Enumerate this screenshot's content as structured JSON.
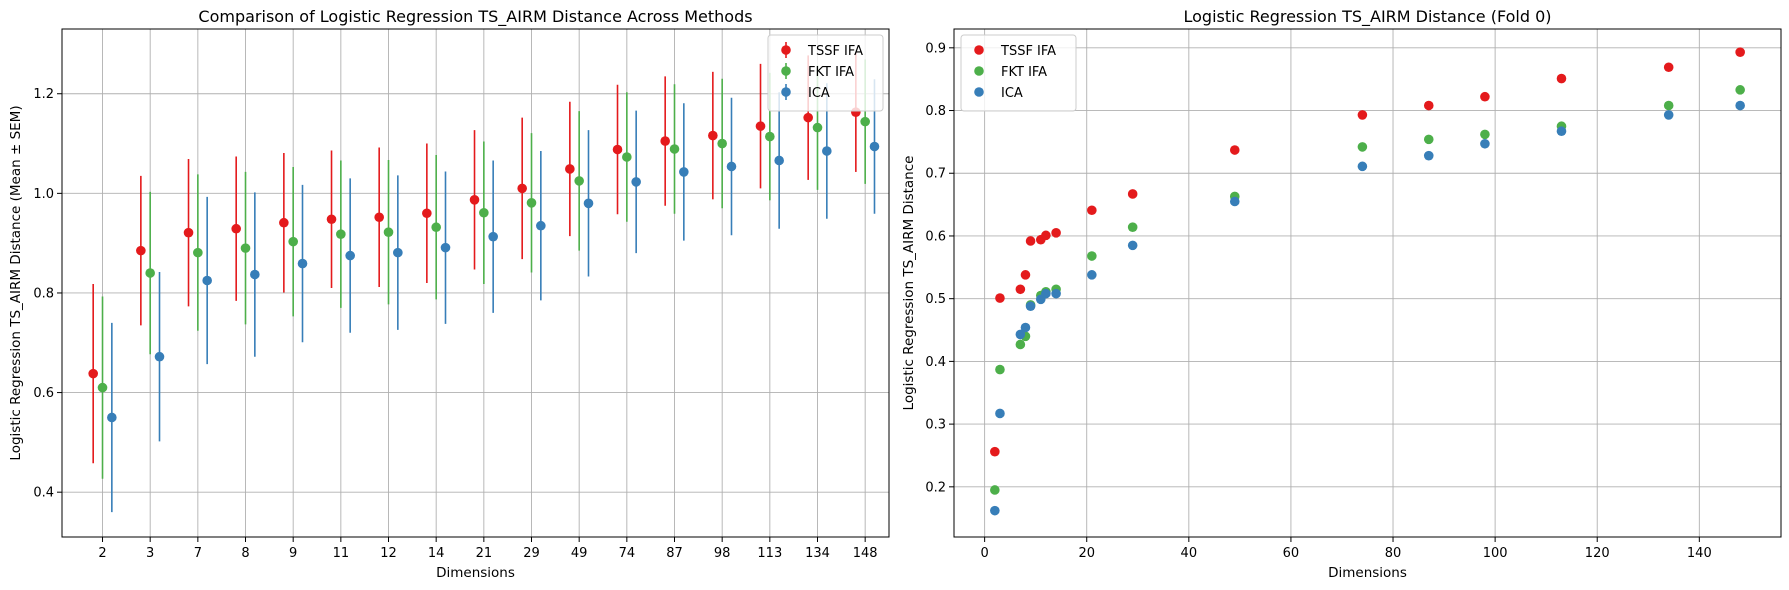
{
  "colors": {
    "TSSF IFA": "#e41a1c",
    "FKT IFA": "#4daf4a",
    "ICA": "#377eb8",
    "grid": "#b0b0b0",
    "axes": "#000000"
  },
  "chart_data": [
    {
      "type": "scatter",
      "subtype": "errorbar",
      "title": "Comparison of Logistic Regression TS_AIRM Distance Across Methods",
      "xlabel": "Dimensions",
      "ylabel": "Logistic Regression TS_AIRM Distance (Mean ± SEM)",
      "categories": [
        "2",
        "3",
        "7",
        "8",
        "9",
        "11",
        "12",
        "14",
        "21",
        "29",
        "49",
        "74",
        "87",
        "98",
        "113",
        "134",
        "148"
      ],
      "ylim": [
        0.31,
        1.33
      ],
      "yticks": [
        0.4,
        0.6,
        0.8,
        1.0,
        1.2
      ],
      "ytick_labels": [
        "0.4",
        "0.6",
        "0.8",
        "1.0",
        "1.2"
      ],
      "grid": true,
      "legend_position": "top-right",
      "series": [
        {
          "name": "TSSF IFA",
          "values": [
            0.638,
            0.885,
            0.921,
            0.929,
            0.941,
            0.948,
            0.952,
            0.96,
            0.987,
            1.01,
            1.049,
            1.088,
            1.105,
            1.116,
            1.135,
            1.152,
            1.163
          ],
          "sem": [
            0.18,
            0.15,
            0.148,
            0.145,
            0.14,
            0.138,
            0.14,
            0.14,
            0.14,
            0.142,
            0.135,
            0.13,
            0.13,
            0.128,
            0.125,
            0.125,
            0.12
          ]
        },
        {
          "name": "FKT IFA",
          "values": [
            0.61,
            0.84,
            0.881,
            0.89,
            0.903,
            0.918,
            0.922,
            0.932,
            0.961,
            0.981,
            1.025,
            1.073,
            1.089,
            1.1,
            1.114,
            1.132,
            1.144
          ],
          "sem": [
            0.183,
            0.163,
            0.157,
            0.153,
            0.15,
            0.148,
            0.145,
            0.145,
            0.143,
            0.14,
            0.14,
            0.13,
            0.13,
            0.13,
            0.128,
            0.125,
            0.125
          ]
        },
        {
          "name": "ICA",
          "values": [
            0.55,
            0.672,
            0.825,
            0.837,
            0.859,
            0.875,
            0.881,
            0.891,
            0.913,
            0.935,
            0.98,
            1.023,
            1.043,
            1.054,
            1.066,
            1.085,
            1.094
          ],
          "sem": [
            0.19,
            0.17,
            0.168,
            0.165,
            0.158,
            0.155,
            0.155,
            0.153,
            0.153,
            0.15,
            0.147,
            0.143,
            0.138,
            0.138,
            0.137,
            0.136,
            0.135
          ]
        }
      ]
    },
    {
      "type": "scatter",
      "title": "Logistic Regression TS_AIRM Distance (Fold 0)",
      "xlabel": "Dimensions",
      "ylabel": "Logistic Regression TS_AIRM Distance",
      "xlim": [
        -6,
        156
      ],
      "ylim": [
        0.12,
        0.93
      ],
      "xticks": [
        0,
        20,
        40,
        60,
        80,
        100,
        120,
        140
      ],
      "xtick_labels": [
        "0",
        "20",
        "40",
        "60",
        "80",
        "100",
        "120",
        "140"
      ],
      "yticks": [
        0.2,
        0.3,
        0.4,
        0.5,
        0.6,
        0.7,
        0.8,
        0.9
      ],
      "ytick_labels": [
        "0.2",
        "0.3",
        "0.4",
        "0.5",
        "0.6",
        "0.7",
        "0.8",
        "0.9"
      ],
      "grid": true,
      "legend_position": "top-left",
      "x": [
        2,
        3,
        7,
        8,
        9,
        11,
        12,
        14,
        21,
        29,
        49,
        74,
        87,
        98,
        113,
        134,
        148
      ],
      "series": [
        {
          "name": "TSSF IFA",
          "values": [
            0.256,
            0.501,
            0.515,
            0.538,
            0.592,
            0.594,
            0.601,
            0.605,
            0.641,
            0.667,
            0.737,
            0.793,
            0.808,
            0.822,
            0.851,
            0.869,
            0.893
          ]
        },
        {
          "name": "FKT IFA",
          "values": [
            0.195,
            0.387,
            0.427,
            0.44,
            0.49,
            0.505,
            0.511,
            0.515,
            0.568,
            0.614,
            0.663,
            0.742,
            0.754,
            0.762,
            0.775,
            0.808,
            0.833
          ]
        },
        {
          "name": "ICA",
          "values": [
            0.162,
            0.317,
            0.443,
            0.454,
            0.488,
            0.499,
            0.508,
            0.508,
            0.538,
            0.585,
            0.655,
            0.711,
            0.728,
            0.747,
            0.767,
            0.793,
            0.808
          ]
        }
      ]
    }
  ]
}
